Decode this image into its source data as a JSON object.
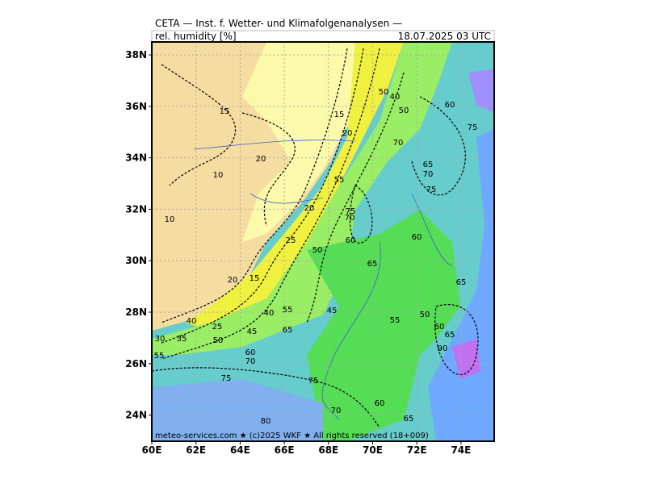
{
  "header": {
    "title": "CETA — Inst. f. Wetter- und Klimafolgenanalysen —",
    "field": "rel. humidity [%]",
    "valid": "18.07.2025 03 UTC"
  },
  "map": {
    "lat_ticks": [
      {
        "value": 38,
        "label": "38N"
      },
      {
        "value": 36,
        "label": "36N"
      },
      {
        "value": 34,
        "label": "34N"
      },
      {
        "value": 32,
        "label": "32N"
      },
      {
        "value": 30,
        "label": "30N"
      },
      {
        "value": 28,
        "label": "28N"
      },
      {
        "value": 26,
        "label": "26N"
      },
      {
        "value": 24,
        "label": "24N"
      }
    ],
    "lon_ticks": [
      {
        "value": 60,
        "label": "60E"
      },
      {
        "value": 62,
        "label": "62E"
      },
      {
        "value": 64,
        "label": "64E"
      },
      {
        "value": 66,
        "label": "66E"
      },
      {
        "value": 68,
        "label": "68E"
      },
      {
        "value": 70,
        "label": "70E"
      },
      {
        "value": 72,
        "label": "72E"
      },
      {
        "value": 74,
        "label": "74E"
      }
    ],
    "contour_labels": [
      "15",
      "20",
      "10",
      "10",
      "15",
      "20",
      "20",
      "25",
      "50",
      "15",
      "20",
      "40",
      "55",
      "45",
      "60",
      "65",
      "70",
      "75",
      "55",
      "50",
      "40",
      "50",
      "70",
      "65",
      "70",
      "75",
      "60",
      "65",
      "50",
      "55",
      "60",
      "65",
      "90",
      "60",
      "75",
      "45",
      "65",
      "50",
      "25",
      "40",
      "30",
      "35",
      "55",
      "60",
      "70",
      "75",
      "75",
      "70",
      "60",
      "65",
      "80"
    ],
    "footer": "meteo-services.com ★ (c)2025 WKF ★ All rights reserved (18+009)"
  }
}
